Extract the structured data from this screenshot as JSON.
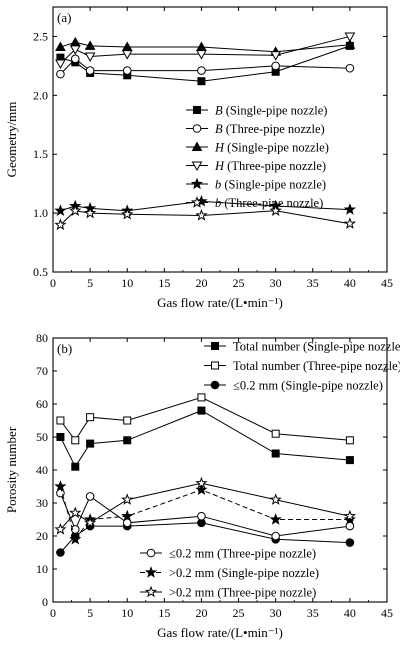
{
  "chart_data": [
    {
      "panel": "(a)",
      "type": "line",
      "xlabel": "Gas flow rate/(L•min⁻¹)",
      "ylabel": "Geometry/mm",
      "xlim": [
        0,
        45
      ],
      "ylim": [
        0.5,
        2.75
      ],
      "xticks": [
        0,
        5,
        10,
        15,
        20,
        25,
        30,
        35,
        40,
        45
      ],
      "yticks": [
        0.5,
        1.0,
        1.5,
        2.0,
        2.5
      ],
      "legend_position": "right",
      "series": [
        {
          "symbol": "B",
          "nozzle": "(Single-pipe nozzle)",
          "marker": "square-filled",
          "dash": false,
          "x": [
            1,
            3,
            5,
            10,
            20,
            30,
            40
          ],
          "y": [
            2.32,
            2.28,
            2.19,
            2.17,
            2.12,
            2.2,
            2.42
          ]
        },
        {
          "symbol": "B",
          "nozzle": "(Three-pipe nozzle)",
          "marker": "circle-open",
          "dash": false,
          "x": [
            1,
            3,
            5,
            10,
            20,
            30,
            40
          ],
          "y": [
            2.18,
            2.31,
            2.21,
            2.21,
            2.21,
            2.25,
            2.23
          ]
        },
        {
          "symbol": "H",
          "nozzle": "(Single-pipe nozzle)",
          "marker": "triangle-up-filled",
          "dash": false,
          "x": [
            1,
            3,
            5,
            10,
            20,
            30,
            40
          ],
          "y": [
            2.41,
            2.45,
            2.42,
            2.41,
            2.41,
            2.37,
            2.43
          ]
        },
        {
          "symbol": "H",
          "nozzle": "(Three-pipe nozzle)",
          "marker": "triangle-down-open",
          "dash": false,
          "x": [
            1,
            3,
            5,
            10,
            20,
            30,
            40
          ],
          "y": [
            2.27,
            2.39,
            2.33,
            2.35,
            2.35,
            2.34,
            2.5
          ]
        },
        {
          "symbol": "b",
          "nozzle": "(Single-pipe nozzle)",
          "marker": "star-filled",
          "dash": false,
          "x": [
            1,
            3,
            5,
            10,
            20,
            30,
            40
          ],
          "y": [
            1.02,
            1.06,
            1.04,
            1.02,
            1.1,
            1.06,
            1.03
          ]
        },
        {
          "symbol": "b",
          "nozzle": "(Three-pipe nozzle)",
          "marker": "star-open",
          "dash": false,
          "x": [
            1,
            3,
            5,
            10,
            20,
            30,
            40
          ],
          "y": [
            0.9,
            1.02,
            1.0,
            0.99,
            0.98,
            1.02,
            0.91
          ]
        }
      ]
    },
    {
      "panel": "(b)",
      "type": "line",
      "xlabel": "Gas flow rate/(L•min⁻¹)",
      "ylabel": "Porosity number",
      "xlim": [
        0,
        45
      ],
      "ylim": [
        0,
        80
      ],
      "xticks": [
        0,
        5,
        10,
        15,
        20,
        25,
        30,
        35,
        40,
        45
      ],
      "yticks": [
        0,
        10,
        20,
        30,
        40,
        50,
        60,
        70,
        80
      ],
      "legend_position": "top-right and bottom-right",
      "series": [
        {
          "name": "Total number (Single-pipe nozzle)",
          "marker": "square-filled",
          "dash": false,
          "legend": "top",
          "x": [
            1,
            3,
            5,
            10,
            20,
            30,
            40
          ],
          "y": [
            50,
            41,
            48,
            49,
            58,
            45,
            43
          ]
        },
        {
          "name": "Total number (Three-pipe nozzle)",
          "marker": "square-open",
          "dash": false,
          "legend": "top",
          "x": [
            1,
            3,
            5,
            10,
            20,
            30,
            40
          ],
          "y": [
            55,
            49,
            56,
            55,
            62,
            51,
            49
          ]
        },
        {
          "name": "≤0.2 mm (Single-pipe nozzle)",
          "marker": "circle-filled",
          "dash": false,
          "legend": "top",
          "x": [
            1,
            3,
            5,
            10,
            20,
            30,
            40
          ],
          "y": [
            15,
            20,
            23,
            23,
            24,
            19,
            18
          ]
        },
        {
          "name": "≤0.2 mm (Three-pipe nozzle)",
          "marker": "circle-open",
          "dash": false,
          "legend": "bottom",
          "x": [
            1,
            3,
            5,
            10,
            20,
            30,
            40
          ],
          "y": [
            33,
            22,
            32,
            24,
            26,
            20,
            23
          ]
        },
        {
          "name": ">0.2 mm (Single-pipe nozzle)",
          "marker": "star-filled",
          "dash": true,
          "legend": "bottom",
          "x": [
            1,
            3,
            5,
            10,
            20,
            30,
            40
          ],
          "y": [
            35,
            19,
            25,
            26,
            34,
            25,
            25
          ]
        },
        {
          "name": ">0.2 mm (Three-pipe nozzle)",
          "marker": "star-open",
          "dash": false,
          "legend": "bottom",
          "x": [
            1,
            3,
            5,
            10,
            20,
            30,
            40
          ],
          "y": [
            22,
            27,
            24,
            31,
            36,
            31,
            26
          ]
        }
      ]
    }
  ]
}
